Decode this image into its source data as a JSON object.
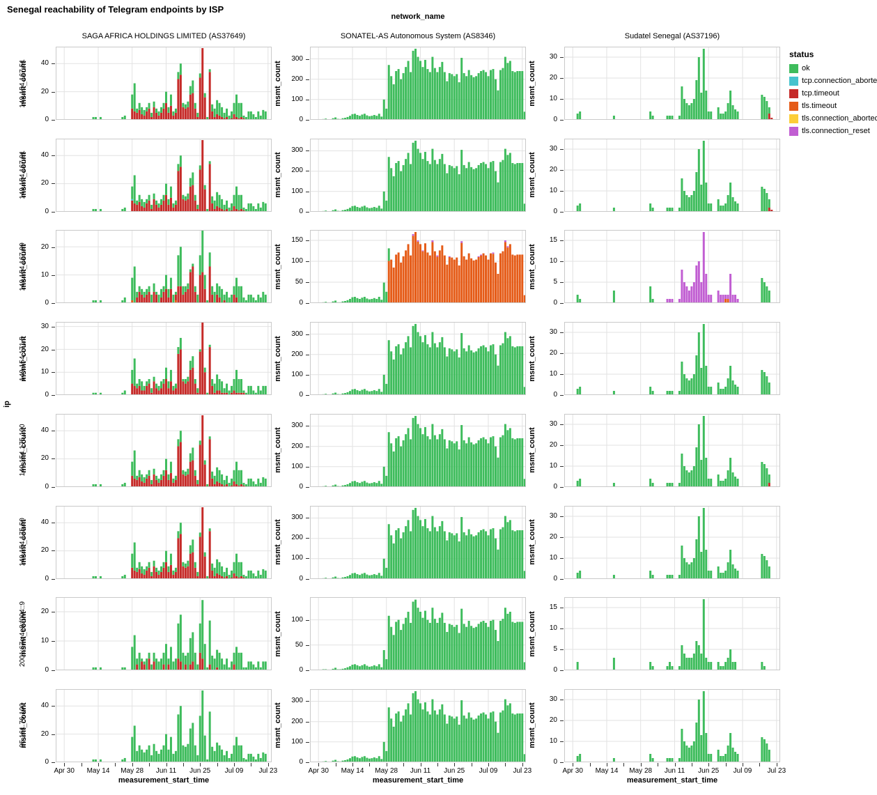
{
  "page": {
    "title": "Senegal reachability of Telegram endpoints by ISP"
  },
  "header": {
    "facet_title": "network_name",
    "columns": [
      "SAGA AFRICA HOLDINGS LIMITED (AS37649)",
      "SONATEL-AS Autonomous System (AS8346)",
      "Sudatel Senegal (AS37196)"
    ]
  },
  "axes": {
    "y_outer_label": "ip",
    "y_inner_label": "msmt_count",
    "x_label": "measurement_start_time"
  },
  "legend": {
    "title": "status",
    "items": [
      {
        "label": "ok",
        "color": "#3EBC5C"
      },
      {
        "label": "tcp.connection_aborted",
        "color": "#46C3CE"
      },
      {
        "label": "tcp.timeout",
        "color": "#C52A28"
      },
      {
        "label": "tls.timeout",
        "color": "#E55B17"
      },
      {
        "label": "tls.connection_aborted",
        "color": "#FCCE38"
      },
      {
        "label": "tls.connection_reset",
        "color": "#C15ED2"
      }
    ]
  },
  "chart_data": {
    "type": "bar",
    "stacked": true,
    "facet_rows": "ip",
    "facet_cols": "network_name",
    "n_days": 89,
    "x_ticks": {
      "days": [
        3,
        17,
        31,
        45,
        59,
        73,
        87
      ],
      "labels": [
        "Apr 30",
        "May 14",
        "May 28",
        "Jun 11",
        "Jun 25",
        "Jul 09",
        "Jul 23"
      ]
    },
    "x_minor_tick_days": [
      10,
      24,
      38,
      52,
      66,
      80
    ],
    "rows": [
      {
        "label": "149.154.167.51"
      },
      {
        "label": "149.154.167.91"
      },
      {
        "label": "149.154.167.99"
      },
      {
        "label": "149.154.171.5"
      },
      {
        "label": "149.154.175.100"
      },
      {
        "label": "149.154.175.50"
      },
      {
        "label": "2001:67c:4e8:f004::9"
      },
      {
        "label": "95.161.76.100"
      }
    ],
    "colors": {
      "ok": "#3EBC5C",
      "tcp.connection_aborted": "#46C3CE",
      "tcp.timeout": "#C52A28",
      "tls.timeout": "#E55B17",
      "tls.connection_aborted": "#FCCE38",
      "tls.connection_reset": "#C15ED2"
    },
    "stack_order": [
      "tls.timeout",
      "tcp.timeout",
      "tcp.connection_aborted",
      "tls.connection_aborted",
      "ok",
      "tls.connection_reset"
    ],
    "bases": {
      "saga": {
        "15": 2,
        "16": 2,
        "18": 2,
        "27": 2,
        "28": 3,
        "31": 18,
        "32": 26,
        "33": 8,
        "34": 12,
        "35": 9,
        "36": 7,
        "37": 9,
        "38": 12,
        "39": 5,
        "40": 13,
        "41": 8,
        "42": 6,
        "43": 9,
        "44": 12,
        "45": 20,
        "46": 9,
        "47": 18,
        "48": 6,
        "49": 8,
        "50": 34,
        "51": 40,
        "52": 12,
        "53": 11,
        "54": 13,
        "55": 24,
        "56": 28,
        "57": 12,
        "58": 5,
        "59": 33,
        "60": 51,
        "61": 19,
        "62": 2,
        "63": 36,
        "64": 11,
        "65": 8,
        "66": 14,
        "67": 12,
        "68": 9,
        "69": 5,
        "70": 8,
        "71": 3,
        "72": 6,
        "73": 12,
        "74": 18,
        "75": 12,
        "76": 12,
        "77": 3,
        "78": 2,
        "79": 6,
        "80": 6,
        "81": 4,
        "82": 2,
        "83": 6,
        "84": 3,
        "85": 7,
        "86": 6
      },
      "sonatel": {
        "1": 2,
        "2": 3,
        "3": 3,
        "4": 2,
        "5": 4,
        "6": 6,
        "7": 3,
        "8": 2,
        "9": 8,
        "10": 12,
        "11": 5,
        "12": 4,
        "13": 8,
        "14": 10,
        "15": 14,
        "16": 20,
        "17": 28,
        "18": 30,
        "19": 24,
        "20": 20,
        "21": 26,
        "22": 30,
        "23": 22,
        "24": 18,
        "25": 20,
        "26": 24,
        "27": 20,
        "28": 30,
        "29": 16,
        "30": 100,
        "31": 55,
        "32": 270,
        "33": 215,
        "34": 175,
        "35": 240,
        "36": 250,
        "37": 200,
        "38": 230,
        "39": 260,
        "40": 290,
        "41": 235,
        "42": 340,
        "43": 350,
        "44": 310,
        "45": 290,
        "46": 260,
        "47": 295,
        "48": 250,
        "49": 235,
        "50": 310,
        "51": 255,
        "52": 235,
        "53": 260,
        "54": 285,
        "55": 235,
        "56": 190,
        "57": 230,
        "58": 225,
        "59": 215,
        "60": 225,
        "61": 185,
        "62": 305,
        "63": 230,
        "64": 215,
        "65": 245,
        "66": 220,
        "67": 210,
        "68": 215,
        "69": 230,
        "70": 240,
        "71": 245,
        "72": 235,
        "73": 215,
        "74": 245,
        "75": 250,
        "76": 200,
        "77": 145,
        "78": 245,
        "79": 255,
        "80": 310,
        "81": 280,
        "82": 290,
        "83": 240,
        "84": 235,
        "85": 240,
        "86": 240,
        "87": 240,
        "88": 40
      },
      "sudatel": {
        "5": 3,
        "6": 4,
        "20": 2,
        "35": 4,
        "36": 2,
        "42": 2,
        "43": 2,
        "44": 2,
        "47": 2,
        "48": 16,
        "49": 10,
        "50": 8,
        "51": 7,
        "52": 8,
        "53": 10,
        "54": 19,
        "55": 30,
        "56": 13,
        "57": 34,
        "58": 14,
        "59": 4,
        "60": 4,
        "63": 6,
        "64": 3,
        "65": 3,
        "66": 4,
        "67": 8,
        "68": 14,
        "69": 7,
        "70": 5,
        "71": 4,
        "81": 12,
        "82": 11,
        "83": 9,
        "84": 6
      }
    },
    "patterns": {
      "saga_red": {
        "31": 8,
        "32": 6,
        "33": 5,
        "34": 7,
        "35": 4,
        "36": 3,
        "37": 6,
        "38": 8,
        "39": 2,
        "40": 9,
        "41": 5,
        "42": 3,
        "43": 5,
        "44": 8,
        "45": 12,
        "46": 5,
        "47": 10,
        "48": 3,
        "49": 5,
        "50": 29,
        "51": 32,
        "52": 9,
        "53": 8,
        "54": 9,
        "55": 18,
        "56": 19,
        "57": 8,
        "58": 2,
        "59": 30,
        "60": 51,
        "61": 16,
        "63": 34,
        "64": 6,
        "65": 2,
        "66": 4,
        "67": 3,
        "68": 2,
        "69": 1,
        "70": 2,
        "72": 1,
        "73": 4,
        "74": 2,
        "75": 1,
        "76": 2,
        "77": 1
      },
      "saga_red_light": {
        "33": 2,
        "34": 4,
        "35": 3,
        "36": 2,
        "37": 3,
        "38": 4,
        "40": 4,
        "41": 3,
        "43": 2,
        "44": 4,
        "45": 5,
        "46": 2,
        "47": 5,
        "49": 2,
        "50": 6,
        "51": 6,
        "52": 3,
        "53": 4,
        "54": 5,
        "55": 11,
        "56": 13,
        "57": 4,
        "59": 10,
        "60": 11,
        "61": 5,
        "63": 13,
        "64": 3,
        "66": 3,
        "67": 2,
        "69": 1,
        "73": 3,
        "74": 2
      },
      "saga_red_v6": {
        "33": 2,
        "35": 3,
        "36": 2,
        "38": 4,
        "40": 3,
        "44": 2,
        "46": 2,
        "50": 4,
        "51": 3,
        "53": 2,
        "55": 2,
        "56": 3,
        "59": 6,
        "60": 4,
        "63": 2,
        "66": 1,
        "73": 2
      },
      "saga_orange_slivers": {
        "31": 1,
        "49": 1
      },
      "cyan_sliver": {
        "31": 1
      },
      "sonatel_pre_ok": {
        "1": 1,
        "2": 1,
        "3": 1,
        "4": 1,
        "5": 2,
        "6": 3,
        "7": 1,
        "8": 1,
        "9": 4,
        "10": 6,
        "11": 2,
        "12": 2,
        "13": 4,
        "14": 5,
        "15": 7,
        "16": 10,
        "17": 14,
        "18": 15,
        "19": 12,
        "20": 10,
        "21": 13,
        "22": 15,
        "23": 11,
        "24": 9,
        "25": 10,
        "26": 12,
        "27": 10,
        "28": 15,
        "29": 8,
        "30": 49,
        "31": 27,
        "32": 30
      },
      "sonatel_purple_caps": {
        "42": 4,
        "44": 3,
        "46": 2,
        "50": 4,
        "52": 3,
        "57": 2,
        "62": 4,
        "69": 2,
        "70": 2,
        "75": 3,
        "80": 4,
        "81": 3
      },
      "sudatel_red_end_a": {
        "84": 3,
        "85": 1
      },
      "sudatel_red_end_b": {
        "84": 2,
        "85": 1
      },
      "sudatel_red_end_c": {
        "84": 2
      },
      "sudatel_r3_ok": {
        "5": 2,
        "6": 1,
        "20": 3,
        "35": 4,
        "36": 1,
        "81": 6,
        "82": 5,
        "83": 4,
        "84": 3
      },
      "sudatel_r3_purple": {
        "42": 1,
        "43": 1,
        "44": 1,
        "47": 1,
        "48": 8,
        "49": 5,
        "50": 4,
        "51": 3,
        "52": 4,
        "53": 5,
        "54": 9,
        "55": 10,
        "56": 5,
        "57": 17,
        "58": 7,
        "59": 2,
        "60": 2,
        "63": 3,
        "64": 2,
        "65": 2,
        "66": 1,
        "67": 1,
        "68": 7,
        "69": 2,
        "70": 2,
        "71": 1
      },
      "sudatel_r3_orange": {
        "66": 1,
        "67": 1
      },
      "sudatel_v6_ok": {
        "5": 2,
        "20": 3,
        "35": 2,
        "36": 1,
        "42": 1,
        "43": 2,
        "44": 1,
        "47": 1,
        "48": 6,
        "49": 4,
        "50": 3,
        "51": 3,
        "52": 3,
        "53": 4,
        "54": 7,
        "55": 6,
        "56": 4,
        "57": 17,
        "58": 3,
        "59": 2,
        "60": 2,
        "63": 2,
        "64": 1,
        "65": 1,
        "66": 2,
        "67": 3,
        "68": 5,
        "69": 2,
        "70": 2,
        "81": 2,
        "82": 1
      }
    },
    "cells": [
      [
        {
          "base": "saga",
          "scale": 1,
          "ymax": 52,
          "yticks": [
            0,
            20,
            40
          ],
          "segments": [
            {
              "status": "tcp.timeout",
              "pattern": "saga_red"
            },
            {
              "status": "ok",
              "pattern": "remainder"
            }
          ]
        },
        {
          "base": "sonatel",
          "scale": 1,
          "ymax": 360,
          "yticks": [
            0,
            100,
            200,
            300
          ],
          "segments": [
            {
              "status": "ok",
              "pattern": "remainder"
            }
          ]
        },
        {
          "base": "sudatel",
          "scale": 1,
          "ymax": 35,
          "yticks": [
            0,
            10,
            20,
            30
          ],
          "segments": [
            {
              "status": "tcp.timeout",
              "pattern": "sudatel_red_end_a"
            },
            {
              "status": "ok",
              "pattern": "remainder"
            }
          ]
        }
      ],
      [
        {
          "base": "saga",
          "scale": 1,
          "ymax": 52,
          "yticks": [
            0,
            20,
            40
          ],
          "segments": [
            {
              "status": "tcp.timeout",
              "pattern": "saga_red"
            },
            {
              "status": "tcp.connection_aborted",
              "pattern": "cyan_sliver"
            },
            {
              "status": "ok",
              "pattern": "remainder"
            }
          ]
        },
        {
          "base": "sonatel",
          "scale": 1,
          "ymax": 360,
          "yticks": [
            0,
            100,
            200,
            300
          ],
          "segments": [
            {
              "status": "ok",
              "pattern": "remainder"
            }
          ]
        },
        {
          "base": "sudatel",
          "scale": 1,
          "ymax": 35,
          "yticks": [
            0,
            10,
            20,
            30
          ],
          "segments": [
            {
              "status": "tcp.timeout",
              "pattern": "sudatel_red_end_b"
            },
            {
              "status": "ok",
              "pattern": "remainder"
            }
          ]
        }
      ],
      [
        {
          "base": "saga",
          "scale": 0.5,
          "ymax": 26,
          "yticks": [
            0,
            10,
            20
          ],
          "segments": [
            {
              "status": "tls.timeout",
              "pattern": "saga_orange_slivers"
            },
            {
              "status": "tcp.timeout",
              "pattern": "saga_red_light"
            },
            {
              "status": "ok",
              "pattern": "remainder"
            }
          ]
        },
        {
          "base": "sonatel",
          "scale": 0.485,
          "ymax": 175,
          "yticks": [
            0,
            50,
            100,
            150
          ],
          "segments": [
            {
              "status": "ok",
              "pattern": "sonatel_pre_ok"
            },
            {
              "status": "tls.connection_reset",
              "pattern": "sonatel_purple_caps"
            },
            {
              "status": "tls.timeout",
              "pattern": "remainder"
            }
          ]
        },
        {
          "base": null,
          "scale": 1,
          "ymax": 17.5,
          "yticks": [
            0,
            5,
            10,
            15
          ],
          "segments": [
            {
              "status": "tls.timeout",
              "pattern": "sudatel_r3_orange"
            },
            {
              "status": "ok",
              "pattern": "sudatel_r3_ok"
            },
            {
              "status": "tls.connection_reset",
              "pattern": "sudatel_r3_purple"
            }
          ]
        }
      ],
      [
        {
          "base": "saga",
          "scale": 0.62,
          "ymax": 32,
          "yticks": [
            0,
            10,
            20,
            30
          ],
          "segments": [
            {
              "status": "tcp.timeout",
              "pattern": "saga_red",
              "scale": 0.62
            },
            {
              "status": "ok",
              "pattern": "remainder"
            }
          ]
        },
        {
          "base": "sonatel",
          "scale": 1,
          "ymax": 360,
          "yticks": [
            0,
            100,
            200,
            300
          ],
          "segments": [
            {
              "status": "ok",
              "pattern": "remainder"
            }
          ]
        },
        {
          "base": "sudatel",
          "scale": 1,
          "ymax": 35,
          "yticks": [
            0,
            10,
            20,
            30
          ],
          "segments": [
            {
              "status": "ok",
              "pattern": "remainder"
            }
          ]
        }
      ],
      [
        {
          "base": "saga",
          "scale": 1,
          "ymax": 52,
          "yticks": [
            0,
            20,
            40
          ],
          "segments": [
            {
              "status": "tcp.timeout",
              "pattern": "saga_red"
            },
            {
              "status": "ok",
              "pattern": "remainder"
            }
          ]
        },
        {
          "base": "sonatel",
          "scale": 1,
          "ymax": 360,
          "yticks": [
            0,
            100,
            200,
            300
          ],
          "segments": [
            {
              "status": "ok",
              "pattern": "remainder"
            }
          ]
        },
        {
          "base": "sudatel",
          "scale": 1,
          "ymax": 35,
          "yticks": [
            0,
            10,
            20,
            30
          ],
          "segments": [
            {
              "status": "tcp.timeout",
              "pattern": "sudatel_red_end_c"
            },
            {
              "status": "ok",
              "pattern": "remainder"
            }
          ]
        }
      ],
      [
        {
          "base": "saga",
          "scale": 1,
          "ymax": 52,
          "yticks": [
            0,
            20,
            40
          ],
          "segments": [
            {
              "status": "tcp.timeout",
              "pattern": "saga_red"
            },
            {
              "status": "ok",
              "pattern": "remainder"
            }
          ]
        },
        {
          "base": "sonatel",
          "scale": 1,
          "ymax": 360,
          "yticks": [
            0,
            100,
            200,
            300
          ],
          "segments": [
            {
              "status": "ok",
              "pattern": "remainder"
            }
          ]
        },
        {
          "base": "sudatel",
          "scale": 1,
          "ymax": 35,
          "yticks": [
            0,
            10,
            20,
            30
          ],
          "segments": [
            {
              "status": "ok",
              "pattern": "remainder"
            }
          ]
        }
      ],
      [
        {
          "base": "saga",
          "scale": 0.47,
          "ymax": 25,
          "yticks": [
            0,
            10,
            20
          ],
          "segments": [
            {
              "status": "tcp.timeout",
              "pattern": "saga_red_v6"
            },
            {
              "status": "ok",
              "pattern": "remainder"
            }
          ]
        },
        {
          "base": "sonatel",
          "scale": 0.4,
          "ymax": 145,
          "yticks": [
            0,
            50,
            100
          ],
          "segments": [
            {
              "status": "ok",
              "pattern": "remainder"
            }
          ]
        },
        {
          "base": null,
          "scale": 1,
          "ymax": 17.5,
          "yticks": [
            0,
            5,
            10,
            15
          ],
          "segments": [
            {
              "status": "ok",
              "pattern": "sudatel_v6_ok"
            }
          ]
        }
      ],
      [
        {
          "base": "saga",
          "scale": 1,
          "ymax": 52,
          "yticks": [
            0,
            20,
            40
          ],
          "segments": [
            {
              "status": "ok",
              "pattern": "remainder"
            }
          ]
        },
        {
          "base": "sonatel",
          "scale": 1,
          "ymax": 360,
          "yticks": [
            0,
            100,
            200,
            300
          ],
          "segments": [
            {
              "status": "ok",
              "pattern": "remainder"
            }
          ]
        },
        {
          "base": "sudatel",
          "scale": 1,
          "ymax": 35,
          "yticks": [
            0,
            10,
            20,
            30
          ],
          "segments": [
            {
              "status": "ok",
              "pattern": "remainder"
            }
          ]
        }
      ]
    ]
  }
}
